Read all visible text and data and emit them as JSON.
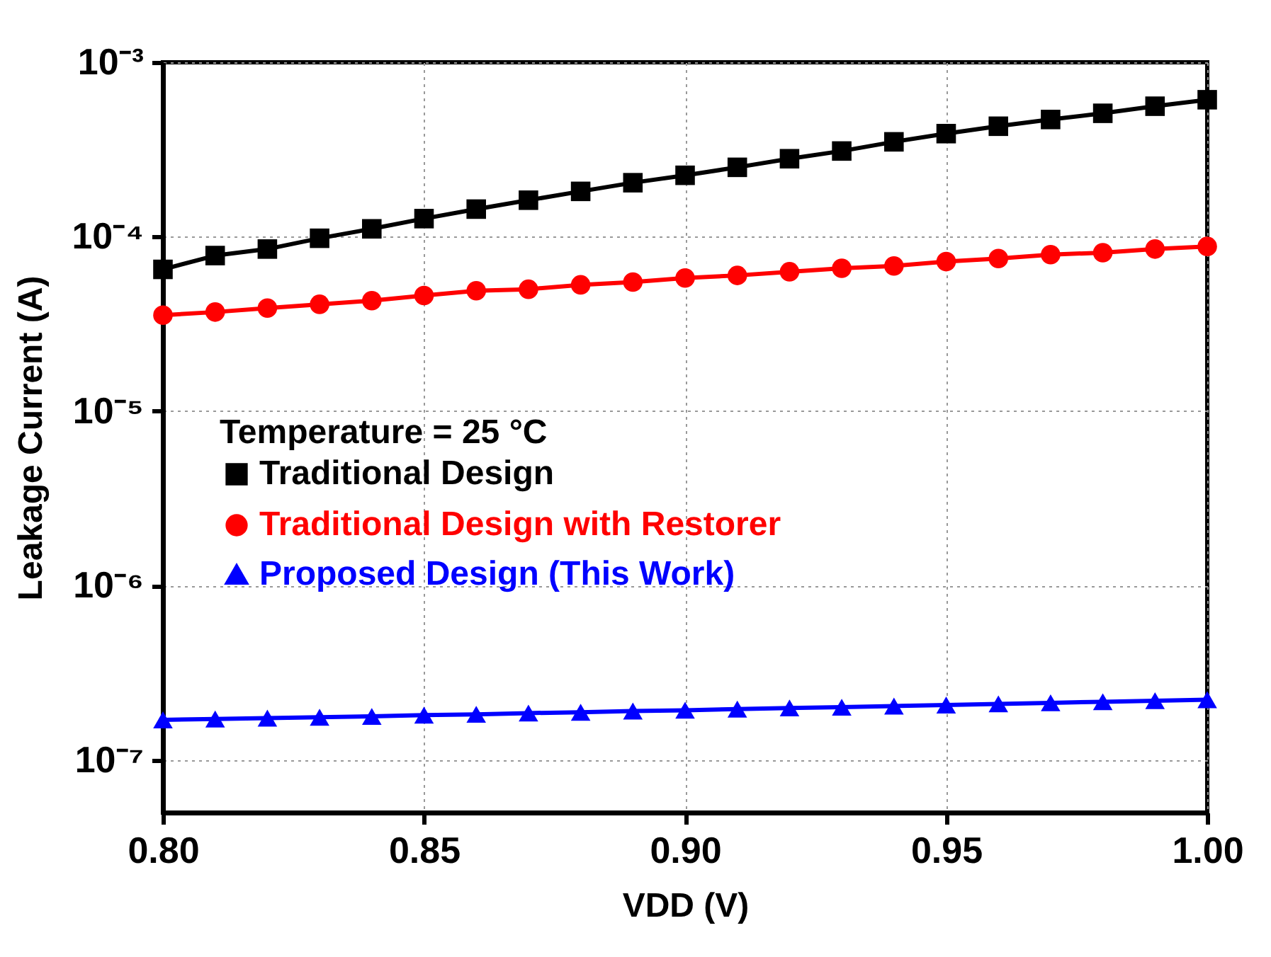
{
  "chart_data": {
    "type": "line",
    "xlabel": "VDD (V)",
    "ylabel": "Leakage Current (A)",
    "legend_title": "Temperature = 25 °C",
    "log": "y",
    "grid": true,
    "legend": "left",
    "x": [
      0.8,
      0.81,
      0.82,
      0.83,
      0.84,
      0.85,
      0.86,
      0.87,
      0.88,
      0.89,
      0.9,
      0.91,
      0.92,
      0.93,
      0.94,
      0.95,
      0.96,
      0.97,
      0.98,
      0.99,
      1.0
    ],
    "xlim": [
      0.8,
      1.0
    ],
    "xticks": [
      {
        "value": 0.8,
        "label": "0.80"
      },
      {
        "value": 0.85,
        "label": "0.85"
      },
      {
        "value": 0.9,
        "label": "0.90"
      },
      {
        "value": 0.95,
        "label": "0.95"
      },
      {
        "value": 1.0,
        "label": "1.00"
      }
    ],
    "ylim": [
      5e-08,
      0.001
    ],
    "yticks": [
      {
        "value": 1e-07,
        "label": "10⁻⁷"
      },
      {
        "value": 1e-06,
        "label": "10⁻⁶"
      },
      {
        "value": 1e-05,
        "label": "10⁻⁵"
      },
      {
        "value": 0.0001,
        "label": "10⁻⁴"
      },
      {
        "value": 0.001,
        "label": "10⁻³"
      }
    ],
    "series": [
      {
        "name": "Traditional Design",
        "color": "#000000",
        "marker": "square",
        "values": [
          6.5e-05,
          7.8e-05,
          8.5e-05,
          9.8e-05,
          0.000111,
          0.000127,
          0.000144,
          0.000162,
          0.000182,
          0.000204,
          0.000225,
          0.00025,
          0.00028,
          0.00031,
          0.00035,
          0.00039,
          0.00043,
          0.00047,
          0.00051,
          0.00056,
          0.00061
        ]
      },
      {
        "name": "Traditional Design with Restorer",
        "color": "#ff0000",
        "marker": "circle",
        "values": [
          3.55e-05,
          3.7e-05,
          3.9e-05,
          4.1e-05,
          4.3e-05,
          4.6e-05,
          4.9e-05,
          5e-05,
          5.3e-05,
          5.5e-05,
          5.8e-05,
          6e-05,
          6.3e-05,
          6.6e-05,
          6.8e-05,
          7.2e-05,
          7.5e-05,
          7.9e-05,
          8.1e-05,
          8.5e-05,
          8.8e-05
        ]
      },
      {
        "name": "Proposed Design (This Work)",
        "color": "#0000ff",
        "marker": "triangle",
        "values": [
          1.7e-07,
          1.72e-07,
          1.74e-07,
          1.76e-07,
          1.78e-07,
          1.81e-07,
          1.83e-07,
          1.86e-07,
          1.88e-07,
          1.91e-07,
          1.93e-07,
          1.96e-07,
          1.99e-07,
          2.01e-07,
          2.04e-07,
          2.07e-07,
          2.1e-07,
          2.13e-07,
          2.16e-07,
          2.19e-07,
          2.22e-07
        ]
      }
    ]
  }
}
